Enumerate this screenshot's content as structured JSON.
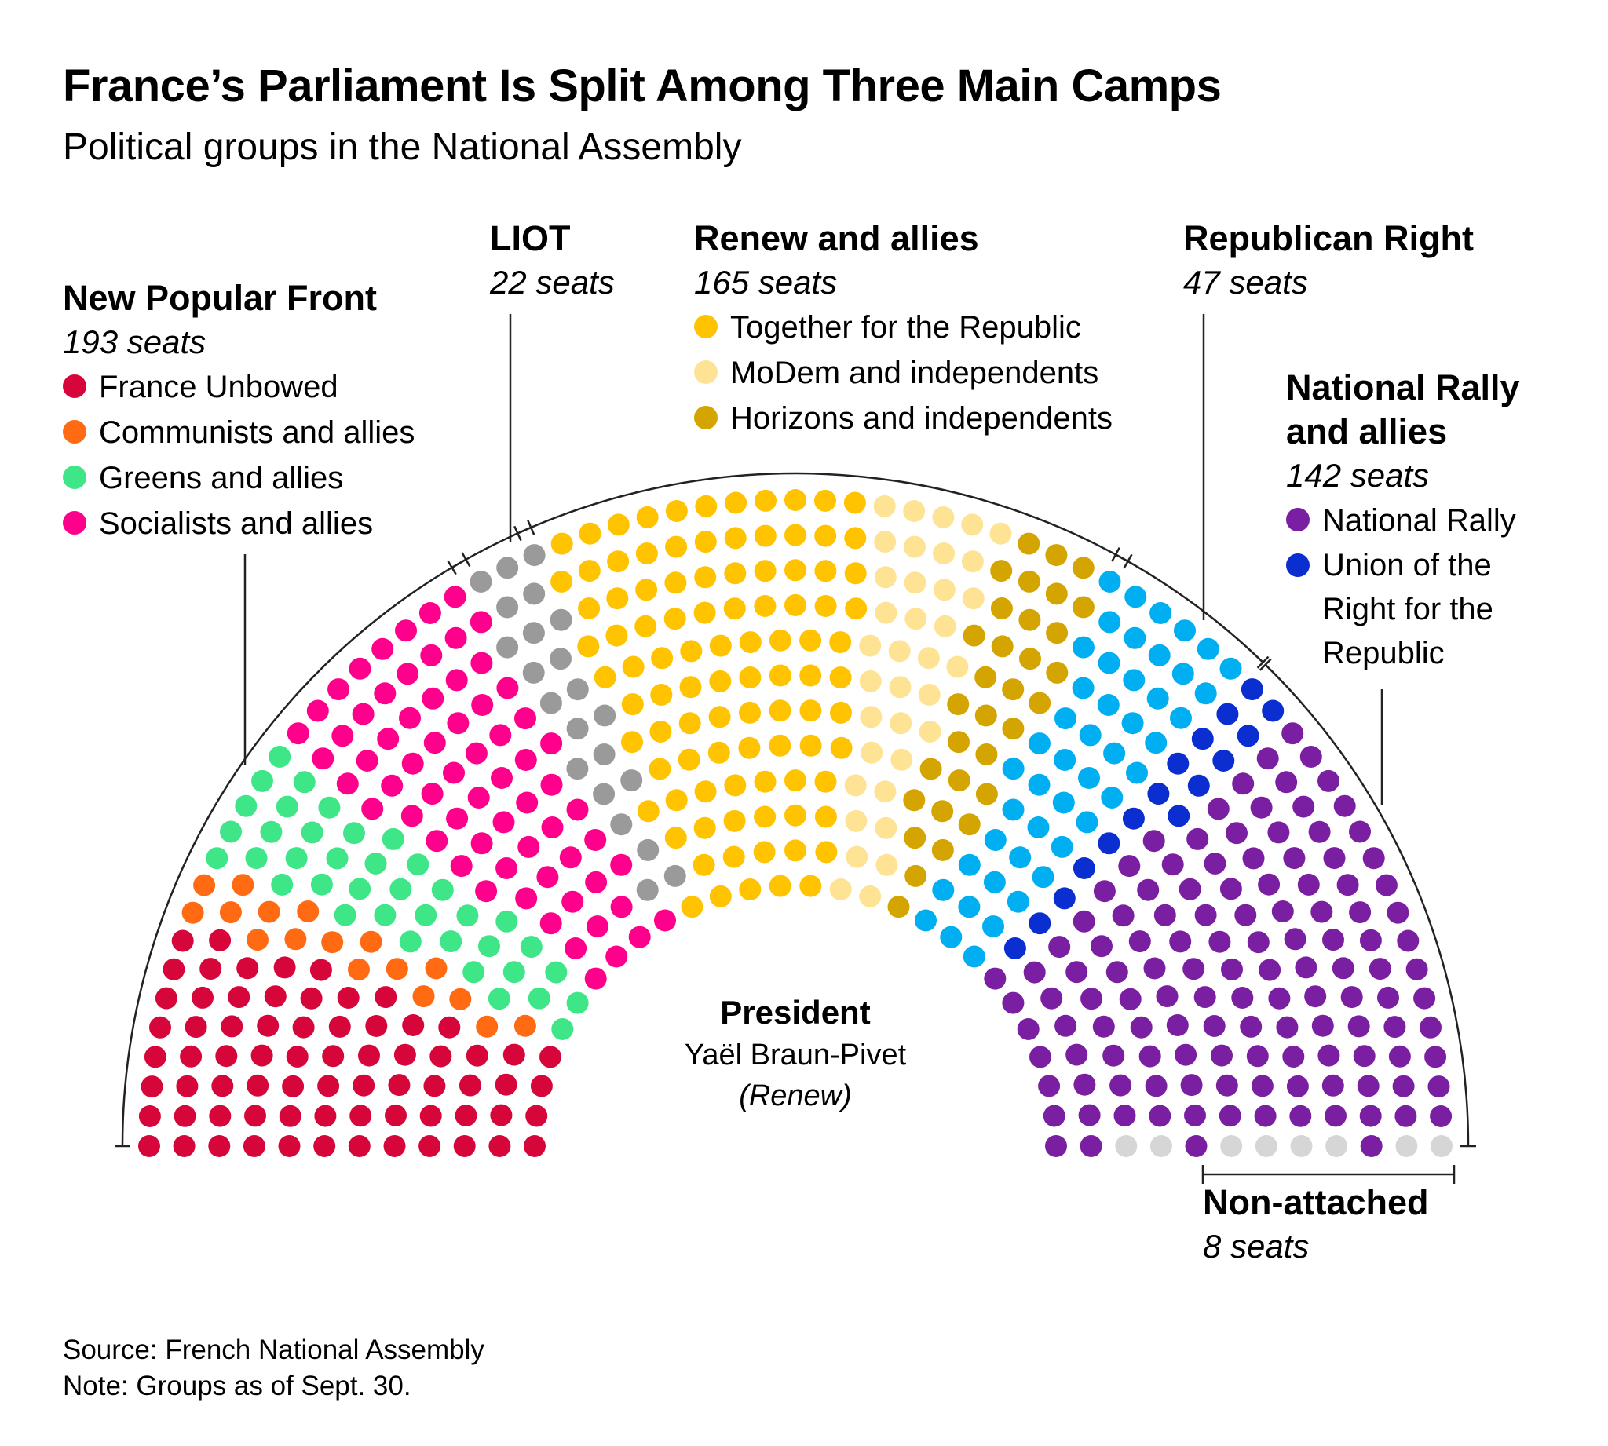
{
  "title": "France’s Parliament Is Split Among Three Main Camps",
  "subtitle": "Political groups in the National Assembly",
  "source": "Source: French National Assembly",
  "note": "Note: Groups as of Sept. 30.",
  "president": {
    "label": "President",
    "name": "Yaël Braun-Pivet",
    "party": "(Renew)"
  },
  "chart_data": {
    "type": "hemicycle",
    "total_seats": 577,
    "rows": 12,
    "groups": [
      {
        "name": "New Popular Front",
        "seats_label": "193 seats",
        "seats": 193,
        "members": [
          {
            "name": "France Unbowed",
            "seats": 71,
            "color": "#d7063a"
          },
          {
            "name": "Communists and allies",
            "seats": 17,
            "color": "#ff6a13"
          },
          {
            "name": "Greens and allies",
            "seats": 38,
            "color": "#3ee687"
          },
          {
            "name": "Socialists and allies",
            "seats": 67,
            "color": "#ff008c"
          }
        ]
      },
      {
        "name": "LIOT",
        "seats_label": "22 seats",
        "seats": 22,
        "members": [
          {
            "name": "LIOT",
            "seats": 22,
            "color": "#9a9a9a"
          }
        ]
      },
      {
        "name": "Renew and allies",
        "seats_label": "165 seats",
        "seats": 165,
        "members": [
          {
            "name": "Together for the Republic",
            "seats": 97,
            "color": "#ffc300"
          },
          {
            "name": "MoDem and independents",
            "seats": 36,
            "color": "#ffe394"
          },
          {
            "name": "Horizons and independents",
            "seats": 32,
            "color": "#d4a500"
          }
        ]
      },
      {
        "name": "Republican Right",
        "seats_label": "47 seats",
        "seats": 47,
        "members": [
          {
            "name": "Republican Right",
            "seats": 47,
            "color": "#00aef2"
          }
        ]
      },
      {
        "name": "National Rally and allies",
        "seats_label": "142 seats",
        "seats": 142,
        "members": [
          {
            "name": "Union of the Right for the Republic",
            "seats": 16,
            "color": "#0a2ecf"
          },
          {
            "name": "National Rally",
            "seats": 126,
            "color": "#7a1fa2"
          }
        ]
      },
      {
        "name": "Non-attached",
        "seats_label": "8 seats",
        "seats": 8,
        "members": [
          {
            "name": "Non-attached",
            "seats": 8,
            "color": "#d6d6d6"
          }
        ]
      }
    ]
  },
  "labels": {
    "npf": {
      "name": "New Popular Front",
      "seats": "193 seats",
      "items": [
        "France Unbowed",
        "Communists and allies",
        "Greens and allies",
        "Socialists and allies"
      ],
      "colors": [
        "#d7063a",
        "#ff6a13",
        "#3ee687",
        "#ff008c"
      ]
    },
    "liot": {
      "name": "LIOT",
      "seats": "22 seats"
    },
    "renew": {
      "name": "Renew and allies",
      "seats": "165 seats",
      "items": [
        "Together for the Republic",
        "MoDem and independents",
        "Horizons and independents"
      ],
      "colors": [
        "#ffc300",
        "#ffe394",
        "#d4a500"
      ]
    },
    "rr": {
      "name": "Republican Right",
      "seats": "47 seats"
    },
    "nr": {
      "name_line1": "National Rally",
      "name_line2": "and allies",
      "seats": "142 seats",
      "items": [
        "National Rally"
      ],
      "item2_lines": [
        "Union of the",
        "Right for the",
        "Republic"
      ],
      "colors": [
        "#7a1fa2",
        "#0a2ecf"
      ]
    },
    "na": {
      "name": "Non-attached",
      "seats": "8 seats"
    }
  }
}
